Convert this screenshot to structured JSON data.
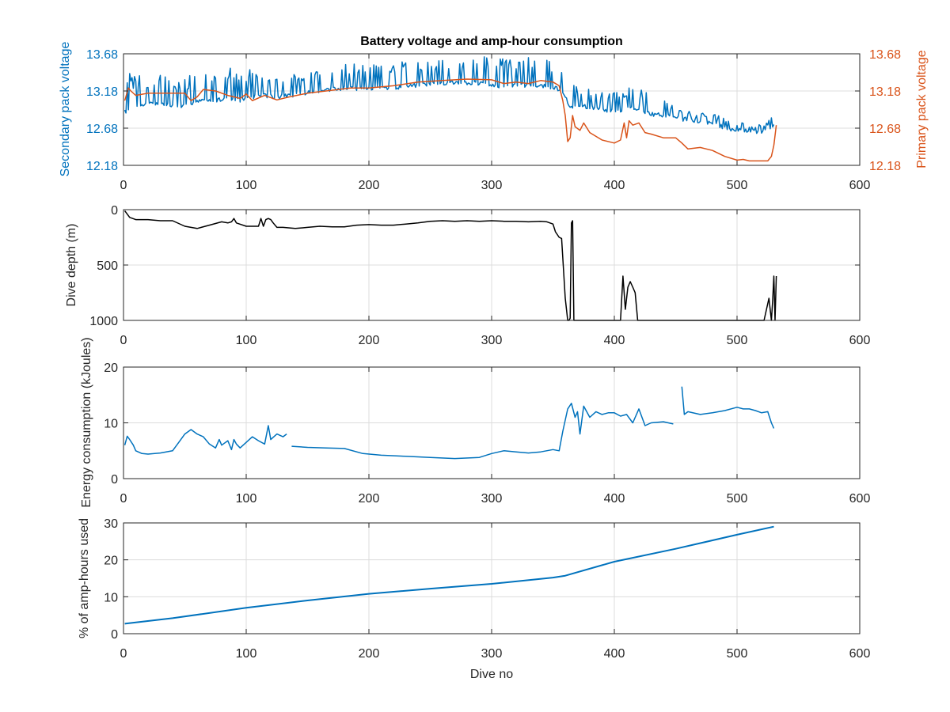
{
  "colors": {
    "blue": "#0072bd",
    "orange": "#d95319",
    "black": "#000000",
    "axis": "#262626",
    "grid": "#dcdcdc"
  },
  "chart_data": [
    {
      "type": "line",
      "title": "Battery voltage and amp-hour consumption",
      "xlabel": "",
      "ylabel": "Secondary pack voltage",
      "y2label": "Primary pack voltage",
      "xlim": [
        0,
        600
      ],
      "ylim": [
        12.18,
        13.68
      ],
      "y2lim": [
        12.18,
        13.68
      ],
      "xticks": [
        "0",
        "100",
        "200",
        "300",
        "400",
        "500",
        "600"
      ],
      "yticks": [
        "12.18",
        "12.68",
        "13.18",
        "13.68"
      ],
      "y2ticks": [
        "12.18",
        "12.68",
        "13.18",
        "13.68"
      ],
      "grid": true,
      "series": [
        {
          "axis": "left",
          "color": "#0072bd",
          "noisy": true,
          "x": [
            1,
            10,
            20,
            30,
            45,
            55,
            65,
            75,
            85,
            95,
            105,
            115,
            125,
            135,
            150,
            165,
            180,
            195,
            210,
            230,
            250,
            270,
            290,
            310,
            330,
            345,
            355,
            365,
            375,
            385,
            395,
            405,
            415,
            425,
            435,
            450,
            465,
            480,
            495,
            505,
            515,
            520,
            525,
            530
          ],
          "base": [
            12.9,
            12.98,
            13.0,
            13.02,
            12.98,
            13.0,
            13.06,
            13.04,
            13.1,
            13.05,
            13.1,
            13.12,
            13.1,
            13.12,
            13.16,
            13.2,
            13.22,
            13.2,
            13.22,
            13.24,
            13.28,
            13.3,
            13.28,
            13.24,
            13.26,
            13.24,
            13.2,
            12.96,
            12.98,
            12.94,
            12.92,
            12.92,
            12.96,
            12.88,
            12.86,
            12.82,
            12.78,
            12.74,
            12.66,
            12.64,
            12.64,
            12.62,
            12.64,
            12.72
          ],
          "spike": [
            13.45,
            13.4,
            13.35,
            13.4,
            13.3,
            13.4,
            13.4,
            13.45,
            13.5,
            13.45,
            13.5,
            13.45,
            13.4,
            13.4,
            13.45,
            13.5,
            13.55,
            13.55,
            13.55,
            13.6,
            13.6,
            13.6,
            13.65,
            13.62,
            13.65,
            13.6,
            13.55,
            13.3,
            13.25,
            13.2,
            13.15,
            13.2,
            13.25,
            13.2,
            13.15,
            12.95,
            12.9,
            12.88,
            12.78,
            12.75,
            12.72,
            12.75,
            12.78,
            13.0
          ]
        },
        {
          "axis": "right",
          "color": "#d95319",
          "noisy": false,
          "x": [
            1,
            4,
            6,
            10,
            20,
            30,
            40,
            50,
            55,
            60,
            65,
            75,
            85,
            95,
            100,
            105,
            115,
            125,
            135,
            150,
            165,
            185,
            200,
            220,
            240,
            260,
            280,
            300,
            310,
            320,
            330,
            340,
            350,
            355,
            358,
            360,
            362,
            364,
            366,
            368,
            372,
            375,
            380,
            390,
            400,
            405,
            408,
            410,
            412,
            415,
            420,
            425,
            430,
            440,
            450,
            455,
            460,
            470,
            480,
            490,
            500,
            505,
            510,
            520,
            525,
            528,
            530,
            532
          ],
          "y": [
            13.05,
            13.22,
            13.18,
            13.12,
            13.15,
            13.15,
            13.15,
            13.15,
            13.05,
            13.1,
            13.2,
            13.18,
            13.12,
            13.08,
            13.14,
            13.05,
            13.12,
            13.06,
            13.1,
            13.15,
            13.18,
            13.22,
            13.22,
            13.25,
            13.3,
            13.32,
            13.34,
            13.33,
            13.28,
            13.3,
            13.28,
            13.32,
            13.3,
            13.25,
            13.05,
            12.85,
            12.5,
            12.55,
            12.85,
            12.7,
            12.65,
            12.75,
            12.62,
            12.52,
            12.48,
            12.52,
            12.75,
            12.55,
            12.78,
            12.72,
            12.75,
            12.62,
            12.6,
            12.55,
            12.55,
            12.48,
            12.4,
            12.42,
            12.38,
            12.3,
            12.25,
            12.26,
            12.24,
            12.24,
            12.24,
            12.3,
            12.45,
            12.72
          ]
        }
      ]
    },
    {
      "type": "line",
      "title": "",
      "xlabel": "",
      "ylabel": "Dive depth (m)",
      "xlim": [
        0,
        600
      ],
      "ylim": [
        0,
        1000
      ],
      "reverse_y": true,
      "xticks": [
        "0",
        "100",
        "200",
        "300",
        "400",
        "500",
        "600"
      ],
      "yticks": [
        "0",
        "500",
        "1000"
      ],
      "grid": true,
      "series": [
        {
          "color": "#000000",
          "noisy": false,
          "x": [
            1,
            5,
            10,
            20,
            30,
            40,
            50,
            60,
            70,
            80,
            85,
            88,
            90,
            92,
            100,
            110,
            112,
            114,
            116,
            118,
            120,
            122,
            125,
            130,
            140,
            150,
            160,
            170,
            180,
            190,
            200,
            210,
            220,
            230,
            240,
            250,
            260,
            270,
            280,
            290,
            300,
            310,
            320,
            330,
            340,
            345,
            350,
            352,
            355,
            357,
            360,
            362,
            363,
            364,
            365,
            366,
            367,
            368,
            370,
            372,
            375,
            380,
            390,
            400,
            405,
            407,
            409,
            411,
            413,
            415,
            417,
            419,
            420,
            430,
            440,
            450,
            460,
            470,
            480,
            490,
            500,
            510,
            520,
            522,
            524,
            526,
            528,
            529,
            530,
            531,
            532
          ],
          "y": [
            10,
            70,
            90,
            90,
            100,
            100,
            150,
            170,
            140,
            110,
            120,
            110,
            80,
            120,
            150,
            150,
            80,
            150,
            90,
            80,
            90,
            120,
            160,
            160,
            170,
            160,
            150,
            155,
            155,
            140,
            135,
            140,
            140,
            130,
            120,
            105,
            100,
            105,
            100,
            105,
            100,
            105,
            105,
            110,
            105,
            110,
            130,
            200,
            250,
            260,
            800,
            1000,
            1000,
            980,
            120,
            100,
            1000,
            1000,
            1000,
            1000,
            1000,
            1000,
            1000,
            1000,
            1000,
            600,
            900,
            700,
            650,
            700,
            750,
            1000,
            1000,
            1000,
            1000,
            1000,
            1000,
            1000,
            1000,
            1000,
            1000,
            1000,
            1000,
            1000,
            900,
            800,
            1000,
            820,
            600,
            1000,
            600
          ]
        }
      ]
    },
    {
      "type": "line",
      "title": "",
      "xlabel": "",
      "ylabel": "Energy consumption (kJoules)",
      "xlim": [
        0,
        600
      ],
      "ylim": [
        0,
        20
      ],
      "xticks": [
        "0",
        "100",
        "200",
        "300",
        "400",
        "500",
        "600"
      ],
      "yticks": [
        "0",
        "10",
        "20"
      ],
      "grid": true,
      "series": [
        {
          "color": "#0072bd",
          "noisy": false,
          "x": [
            1,
            3,
            5,
            8,
            10,
            15,
            20,
            30,
            40,
            45,
            50,
            55,
            60,
            65,
            70,
            75,
            78,
            80,
            85,
            88,
            90,
            92,
            95,
            100,
            105,
            110,
            115,
            118,
            120,
            125,
            130,
            133
          ],
          "y": [
            6.0,
            7.6,
            7.0,
            6.0,
            5.0,
            4.5,
            4.4,
            4.6,
            5.0,
            6.5,
            8.0,
            8.8,
            8.0,
            7.5,
            6.2,
            5.5,
            7.0,
            6.0,
            6.8,
            5.2,
            7.0,
            6.2,
            5.5,
            6.5,
            7.5,
            6.8,
            6.2,
            9.5,
            7.0,
            8.0,
            7.5,
            8.0
          ]
        },
        {
          "color": "#0072bd",
          "noisy": false,
          "x": [
            137,
            150,
            165,
            180,
            195,
            210,
            230,
            250,
            270,
            290,
            300,
            310,
            320,
            330,
            340,
            350,
            355,
            358,
            362,
            365,
            368,
            370,
            372,
            375,
            380,
            385,
            390,
            395,
            400,
            405,
            410,
            415,
            420,
            425,
            430,
            440,
            448
          ],
          "y": [
            5.8,
            5.6,
            5.5,
            5.4,
            4.5,
            4.2,
            4.0,
            3.8,
            3.6,
            3.8,
            4.5,
            5.0,
            4.8,
            4.6,
            4.8,
            5.2,
            5.0,
            8.5,
            12.5,
            13.5,
            11.0,
            12.0,
            8.0,
            13.0,
            11.0,
            12.0,
            11.5,
            11.8,
            11.8,
            11.2,
            11.5,
            10.0,
            12.5,
            9.5,
            10.0,
            10.2,
            9.8
          ]
        },
        {
          "color": "#0072bd",
          "noisy": false,
          "x": [
            455,
            457,
            460,
            470,
            480,
            490,
            500,
            505,
            510,
            515,
            520,
            525,
            528,
            530
          ],
          "y": [
            16.5,
            11.5,
            12.0,
            11.5,
            11.8,
            12.2,
            12.8,
            12.5,
            12.5,
            12.2,
            11.8,
            12.0,
            10.0,
            9.0
          ]
        }
      ]
    },
    {
      "type": "line",
      "title": "",
      "xlabel": "Dive no",
      "ylabel": "% of amp-hours used",
      "xlim": [
        0,
        600
      ],
      "ylim": [
        0,
        30
      ],
      "xticks": [
        "0",
        "100",
        "200",
        "300",
        "400",
        "500",
        "600"
      ],
      "yticks": [
        "0",
        "10",
        "20",
        "30"
      ],
      "grid": true,
      "series": [
        {
          "color": "#0072bd",
          "noisy": false,
          "x": [
            1,
            40,
            100,
            150,
            200,
            250,
            300,
            350,
            360,
            400,
            450,
            500,
            530
          ],
          "y": [
            2.7,
            4.2,
            7.0,
            9.0,
            10.8,
            12.2,
            13.5,
            15.2,
            15.7,
            19.5,
            23.0,
            26.8,
            29.0
          ]
        }
      ]
    }
  ]
}
